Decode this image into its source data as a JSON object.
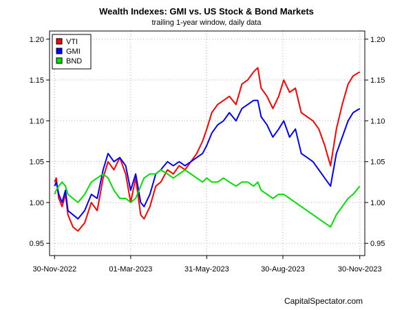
{
  "chart_data": {
    "type": "line",
    "title": "Wealth Indexes: GMI vs. US Stock & Bond Markets",
    "subtitle": "trailing 1-year window, daily data",
    "credit": "CapitalSpectator.com",
    "xlabel": "",
    "ylabel": "",
    "x_ticks": [
      "30-Nov-2022",
      "01-Mar-2023",
      "31-May-2023",
      "30-Aug-2023",
      "30-Nov-2023"
    ],
    "y_ticks": [
      "0.95",
      "1.00",
      "1.05",
      "1.10",
      "1.15",
      "1.20"
    ],
    "ylim": [
      0.935,
      1.21
    ],
    "xlim": [
      "2022-11-24",
      "2023-12-06"
    ],
    "grid": true,
    "legend": "top-left",
    "series": [
      {
        "name": "VTI",
        "color": "#ff0000",
        "x": [
          "2022-11-30",
          "2022-12-02",
          "2022-12-05",
          "2022-12-09",
          "2022-12-13",
          "2022-12-16",
          "2022-12-22",
          "2022-12-28",
          "2023-01-05",
          "2023-01-13",
          "2023-01-20",
          "2023-01-27",
          "2023-02-02",
          "2023-02-09",
          "2023-02-16",
          "2023-02-23",
          "2023-03-01",
          "2023-03-07",
          "2023-03-13",
          "2023-03-17",
          "2023-03-24",
          "2023-03-31",
          "2023-04-06",
          "2023-04-14",
          "2023-04-21",
          "2023-04-28",
          "2023-05-05",
          "2023-05-12",
          "2023-05-19",
          "2023-05-26",
          "2023-05-31",
          "2023-06-06",
          "2023-06-13",
          "2023-06-20",
          "2023-06-27",
          "2023-07-05",
          "2023-07-12",
          "2023-07-19",
          "2023-07-26",
          "2023-07-31",
          "2023-08-04",
          "2023-08-11",
          "2023-08-18",
          "2023-08-25",
          "2023-08-31",
          "2023-09-07",
          "2023-09-14",
          "2023-09-21",
          "2023-09-28",
          "2023-10-05",
          "2023-10-12",
          "2023-10-19",
          "2023-10-26",
          "2023-11-02",
          "2023-11-09",
          "2023-11-16",
          "2023-11-22",
          "2023-11-30"
        ],
        "values": [
          1.025,
          1.03,
          1.005,
          0.995,
          1.01,
          0.985,
          0.97,
          0.965,
          0.975,
          1.0,
          0.99,
          1.03,
          1.05,
          1.04,
          1.055,
          1.035,
          1.0,
          1.03,
          0.985,
          0.98,
          0.995,
          1.02,
          1.025,
          1.04,
          1.035,
          1.045,
          1.04,
          1.05,
          1.06,
          1.075,
          1.09,
          1.11,
          1.12,
          1.125,
          1.13,
          1.12,
          1.145,
          1.15,
          1.16,
          1.165,
          1.14,
          1.13,
          1.115,
          1.13,
          1.15,
          1.135,
          1.14,
          1.11,
          1.105,
          1.1,
          1.09,
          1.07,
          1.045,
          1.09,
          1.12,
          1.145,
          1.155,
          1.16
        ]
      },
      {
        "name": "GMI",
        "color": "#0000ff",
        "x": [
          "2022-11-30",
          "2022-12-02",
          "2022-12-05",
          "2022-12-09",
          "2022-12-13",
          "2022-12-16",
          "2022-12-22",
          "2022-12-28",
          "2023-01-05",
          "2023-01-13",
          "2023-01-20",
          "2023-01-27",
          "2023-02-02",
          "2023-02-09",
          "2023-02-16",
          "2023-02-23",
          "2023-03-01",
          "2023-03-07",
          "2023-03-13",
          "2023-03-17",
          "2023-03-24",
          "2023-03-31",
          "2023-04-06",
          "2023-04-14",
          "2023-04-21",
          "2023-04-28",
          "2023-05-05",
          "2023-05-12",
          "2023-05-19",
          "2023-05-26",
          "2023-05-31",
          "2023-06-06",
          "2023-06-13",
          "2023-06-20",
          "2023-06-27",
          "2023-07-05",
          "2023-07-12",
          "2023-07-19",
          "2023-07-26",
          "2023-07-31",
          "2023-08-04",
          "2023-08-11",
          "2023-08-18",
          "2023-08-25",
          "2023-08-31",
          "2023-09-07",
          "2023-09-14",
          "2023-09-21",
          "2023-09-28",
          "2023-10-05",
          "2023-10-12",
          "2023-10-19",
          "2023-10-26",
          "2023-11-02",
          "2023-11-09",
          "2023-11-16",
          "2023-11-22",
          "2023-11-30"
        ],
        "values": [
          1.02,
          1.025,
          1.01,
          1.0,
          1.015,
          0.99,
          0.985,
          0.98,
          0.99,
          1.01,
          1.005,
          1.04,
          1.06,
          1.05,
          1.055,
          1.045,
          1.015,
          1.035,
          1.0,
          0.995,
          1.01,
          1.035,
          1.04,
          1.05,
          1.045,
          1.05,
          1.045,
          1.05,
          1.055,
          1.06,
          1.07,
          1.085,
          1.095,
          1.1,
          1.11,
          1.1,
          1.115,
          1.12,
          1.125,
          1.125,
          1.105,
          1.095,
          1.08,
          1.09,
          1.1,
          1.08,
          1.09,
          1.06,
          1.055,
          1.05,
          1.04,
          1.03,
          1.02,
          1.06,
          1.08,
          1.1,
          1.11,
          1.115
        ]
      },
      {
        "name": "BND",
        "color": "#00e000",
        "x": [
          "2022-11-30",
          "2022-12-02",
          "2022-12-05",
          "2022-12-09",
          "2022-12-13",
          "2022-12-16",
          "2022-12-22",
          "2022-12-28",
          "2023-01-05",
          "2023-01-13",
          "2023-01-20",
          "2023-01-27",
          "2023-02-02",
          "2023-02-09",
          "2023-02-16",
          "2023-02-23",
          "2023-03-01",
          "2023-03-07",
          "2023-03-13",
          "2023-03-17",
          "2023-03-24",
          "2023-03-31",
          "2023-04-06",
          "2023-04-14",
          "2023-04-21",
          "2023-04-28",
          "2023-05-05",
          "2023-05-12",
          "2023-05-19",
          "2023-05-26",
          "2023-05-31",
          "2023-06-06",
          "2023-06-13",
          "2023-06-20",
          "2023-06-27",
          "2023-07-05",
          "2023-07-12",
          "2023-07-19",
          "2023-07-26",
          "2023-07-31",
          "2023-08-04",
          "2023-08-11",
          "2023-08-18",
          "2023-08-25",
          "2023-08-31",
          "2023-09-07",
          "2023-09-14",
          "2023-09-21",
          "2023-09-28",
          "2023-10-05",
          "2023-10-12",
          "2023-10-19",
          "2023-10-26",
          "2023-11-02",
          "2023-11-09",
          "2023-11-16",
          "2023-11-22",
          "2023-11-30"
        ],
        "values": [
          1.01,
          1.015,
          1.02,
          1.025,
          1.02,
          1.01,
          1.005,
          1.0,
          1.01,
          1.025,
          1.03,
          1.035,
          1.03,
          1.015,
          1.005,
          1.005,
          1.0,
          1.005,
          1.02,
          1.03,
          1.035,
          1.035,
          1.04,
          1.035,
          1.03,
          1.035,
          1.04,
          1.035,
          1.03,
          1.025,
          1.03,
          1.025,
          1.025,
          1.03,
          1.025,
          1.02,
          1.025,
          1.025,
          1.02,
          1.025,
          1.015,
          1.01,
          1.005,
          1.01,
          1.01,
          1.005,
          1.0,
          0.995,
          0.99,
          0.985,
          0.98,
          0.975,
          0.97,
          0.985,
          0.995,
          1.005,
          1.01,
          1.02
        ]
      }
    ]
  }
}
